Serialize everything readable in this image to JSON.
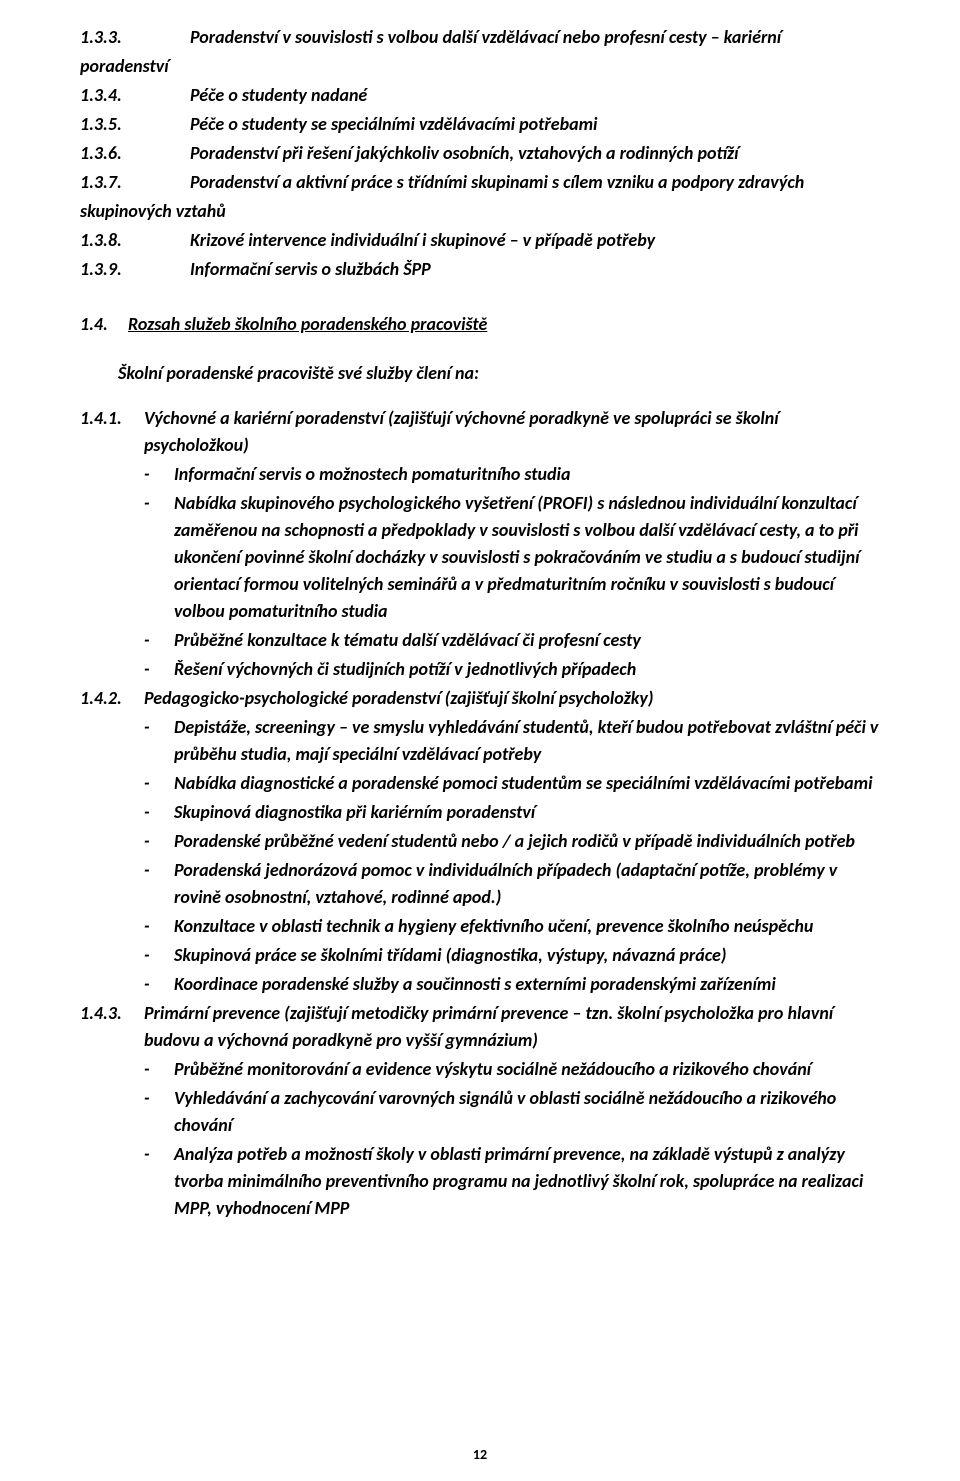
{
  "typography": {
    "font_family": "Calibri",
    "body_size_pt": 13,
    "color": "#000000",
    "background": "#ffffff"
  },
  "section_1_3": [
    {
      "num": "1.3.3.",
      "text": "Poradenství v souvislosti s volbou další vzdělávací nebo profesní cesty – kariérní",
      "cont": "poradenství"
    },
    {
      "num": "1.3.4.",
      "text": "Péče o studenty nadané"
    },
    {
      "num": "1.3.5.",
      "text": "Péče o studenty se speciálními vzdělávacími potřebami"
    },
    {
      "num": "1.3.6.",
      "text": "Poradenství při řešení jakýchkoliv osobních, vztahových a rodinných potíží"
    },
    {
      "num": "1.3.7.",
      "text": "Poradenství a aktivní práce s třídními skupinami s cílem vzniku a podpory zdravých",
      "cont": "skupinových vztahů"
    },
    {
      "num": "1.3.8.",
      "text": "Krizové intervence individuální i skupinové – v případě potřeby"
    },
    {
      "num": "1.3.9.",
      "text": "Informační servis o službách ŠPP"
    }
  ],
  "section_1_4": {
    "num": "1.4.",
    "title": "Rozsah služeb školního poradenského pracoviště",
    "lead": "Školní poradenské pracoviště své služby člení na:"
  },
  "s141": {
    "num": "1.4.1.",
    "head": "Výchovné a kariérní poradenství (zajišťují výchovné poradkyně ve spolupráci se školní",
    "sub": "psycholožkou)",
    "bullets": [
      "Informační servis o možnostech pomaturitního studia",
      "Nabídka skupinového psychologického vyšetření (PROFI) s následnou individuální konzultací zaměřenou na schopnosti a předpoklady v souvislosti s volbou další vzdělávací cesty, a to při ukončení povinné školní docházky v souvislosti s pokračováním ve studiu a s budoucí studijní orientací formou volitelných seminářů a v předmaturitním ročníku v souvislosti s budoucí volbou pomaturitního studia",
      "Průběžné konzultace k tématu další vzdělávací či profesní cesty",
      "Řešení výchovných či studijních potíží v jednotlivých případech"
    ]
  },
  "s142": {
    "num": "1.4.2.",
    "head": "Pedagogicko-psychologické poradenství (zajišťují školní psycholožky)",
    "bullets": [
      "Depistáže, screeningy – ve smyslu vyhledávání studentů, kteří budou potřebovat zvláštní péči v průběhu studia, mají speciální vzdělávací potřeby",
      "Nabídka diagnostické a poradenské pomoci studentům se speciálními vzdělávacími potřebami",
      "Skupinová diagnostika při kariérním poradenství",
      "Poradenské průběžné vedení studentů nebo / a jejich rodičů v případě individuálních potřeb",
      "Poradenská jednorázová pomoc v individuálních případech (adaptační potíže, problémy v rovině osobnostní, vztahové, rodinné apod.)",
      "Konzultace v oblasti technik a hygieny efektivního učení, prevence školního neúspěchu",
      "Skupinová práce se školními třídami (diagnostika, výstupy, návazná práce)",
      "Koordinace poradenské služby a součinnosti s externími poradenskými zařízeními"
    ]
  },
  "s143": {
    "num": "1.4.3.",
    "head": "Primární prevence (zajišťují metodičky primární prevence – tzn. školní psycholožka pro hlavní",
    "sub": "budovu a výchovná poradkyně pro vyšší gymnázium)",
    "bullets": [
      "Průběžné monitorování a evidence výskytu sociálně nežádoucího a rizikového chování",
      "Vyhledávání a zachycování varovných signálů v oblasti sociálně nežádoucího a rizikového chování",
      "Analýza potřeb a možností školy v oblasti primární prevence, na základě výstupů z analýzy tvorba minimálního preventivního programu na jednotlivý školní rok, spolupráce na realizaci MPP, vyhodnocení MPP"
    ]
  },
  "page_number": "12"
}
